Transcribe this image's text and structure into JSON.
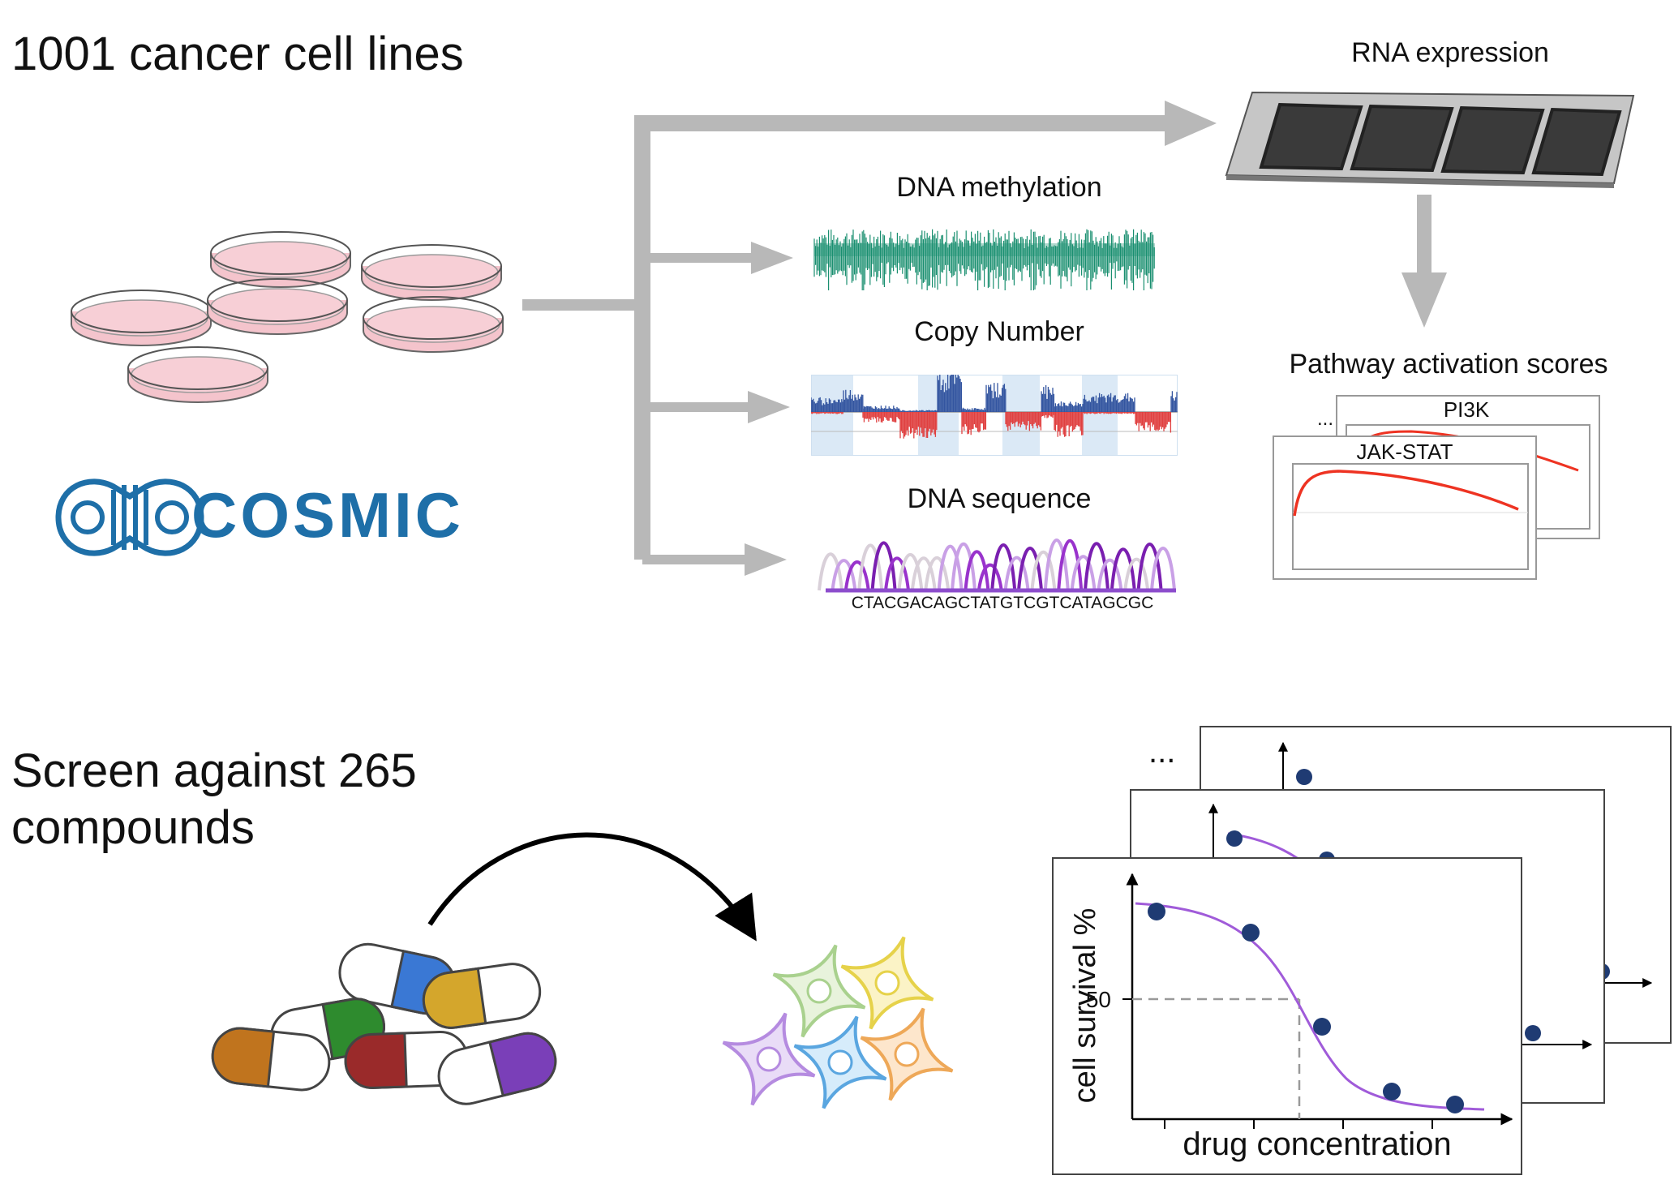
{
  "top": {
    "heading": "1001 cancer cell lines",
    "logo_text": "COSMIC",
    "rna_label": "RNA expression",
    "methylation_label": "DNA methylation",
    "copy_number_label": "Copy Number",
    "sequence_label": "DNA sequence",
    "sequence_text": "CTACGACAGCTATGTCGTCATAGCGC",
    "pathway_label": "Pathway activation scores",
    "pathway_panels": [
      "PI3K",
      "JAK-STAT"
    ],
    "pathway_ellipsis": "..."
  },
  "bottom": {
    "heading_line1": "Screen against 265",
    "heading_line2": "compounds",
    "ellipsis": "...",
    "curve": {
      "ylabel": "cell survival %",
      "xlabel": "drug concentration",
      "y_tick": "50"
    }
  },
  "colors": {
    "arrow_gray": "#b8b8b8",
    "dish_fill": "#f4c4cc",
    "cosmic_blue": "#1e6fa8",
    "methylation_green": "#1a8f70",
    "cn_blue": "#3355a0",
    "cn_red": "#e04040",
    "trace_purple": "#9933cc",
    "curve_purple": "#a05bd9",
    "point_navy": "#1f3b73",
    "pathway_red": "#ee3322"
  }
}
